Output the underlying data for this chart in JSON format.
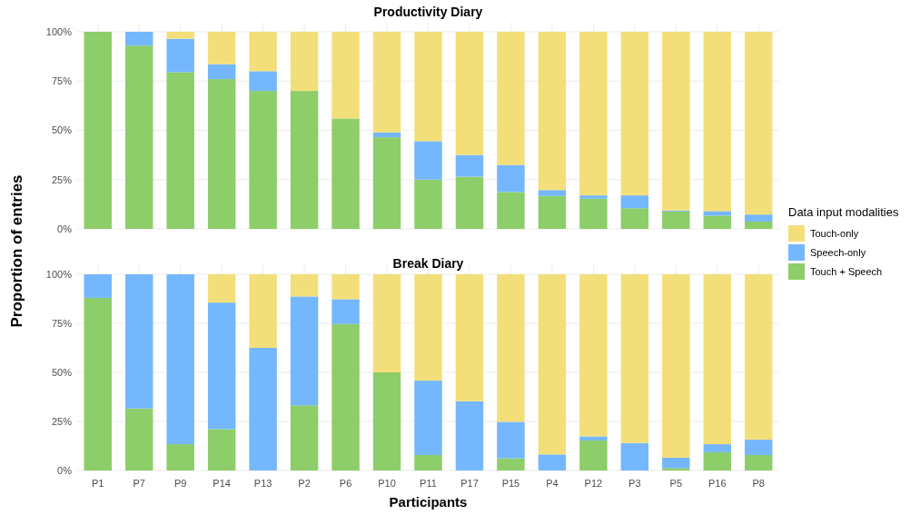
{
  "chart_data": [
    {
      "type": "bar",
      "title": "Productivity Diary",
      "stacked": true,
      "grid": true,
      "legend": "right",
      "legend_title": "Data input modalities",
      "ylabel": "Proportion of entries",
      "tick_labels": "y",
      "ylim": [
        0,
        100
      ],
      "yticks": [
        {
          "value": 0,
          "label": "0%"
        },
        {
          "value": 25,
          "label": "25%"
        },
        {
          "value": 50,
          "label": "50%"
        },
        {
          "value": 75,
          "label": "75%"
        },
        {
          "value": 100,
          "label": "100%"
        }
      ],
      "series": [
        {
          "name": "Touch + Speech",
          "color": "#8dcd6a",
          "values": [
            100,
            93,
            79.5,
            76,
            70,
            70,
            56,
            46.5,
            25,
            26.5,
            18.7,
            16.7,
            15.3,
            10.5,
            8.8,
            6.7,
            3.7
          ]
        },
        {
          "name": "Speech-only",
          "color": "#74b7fd",
          "values": [
            0,
            7,
            17,
            7.5,
            10,
            0,
            0,
            2.5,
            19.5,
            11,
            13.7,
            3,
            1.7,
            6.5,
            0.5,
            2.3,
            3.6
          ]
        },
        {
          "name": "Touch-only",
          "color": "#f3df7a",
          "values": [
            0,
            0,
            3.5,
            16.5,
            20,
            30,
            44,
            51,
            55.5,
            62.5,
            67.6,
            80.3,
            83,
            83,
            90.7,
            91,
            92.7
          ]
        }
      ]
    },
    {
      "type": "bar",
      "title": "Break Diary",
      "stacked": true,
      "grid": true,
      "xlabel": "Participants",
      "categories": [
        "P1",
        "P7",
        "P9",
        "P14",
        "P13",
        "P2",
        "P6",
        "P10",
        "P11",
        "P17",
        "P15",
        "P4",
        "P12",
        "P3",
        "P5",
        "P16",
        "P8"
      ],
      "ylim": [
        0,
        100
      ],
      "yticks": [
        {
          "value": 0,
          "label": "0%"
        },
        {
          "value": 25,
          "label": "25%"
        },
        {
          "value": 50,
          "label": "50%"
        },
        {
          "value": 75,
          "label": "75%"
        },
        {
          "value": 100,
          "label": "100%"
        }
      ],
      "series": [
        {
          "color": "#8dcd6a",
          "values": [
            88,
            31.6,
            13.4,
            21.1,
            0,
            33.2,
            74.7,
            50,
            7.9,
            0,
            6.2,
            0,
            15.3,
            0,
            1.2,
            9.3,
            7.9
          ]
        },
        {
          "color": "#74b7fd",
          "values": [
            12,
            68.4,
            86.6,
            64.5,
            62.5,
            55.5,
            12.6,
            0,
            37.9,
            35.3,
            18.6,
            8.2,
            2.1,
            14,
            5.3,
            4.1,
            7.8
          ]
        },
        {
          "color": "#f3df7a",
          "values": [
            0,
            0,
            0,
            14.4,
            37.5,
            11.3,
            12.7,
            50,
            54.2,
            64.7,
            75.2,
            91.8,
            82.6,
            86,
            93.5,
            86.6,
            84.3
          ]
        }
      ]
    }
  ]
}
